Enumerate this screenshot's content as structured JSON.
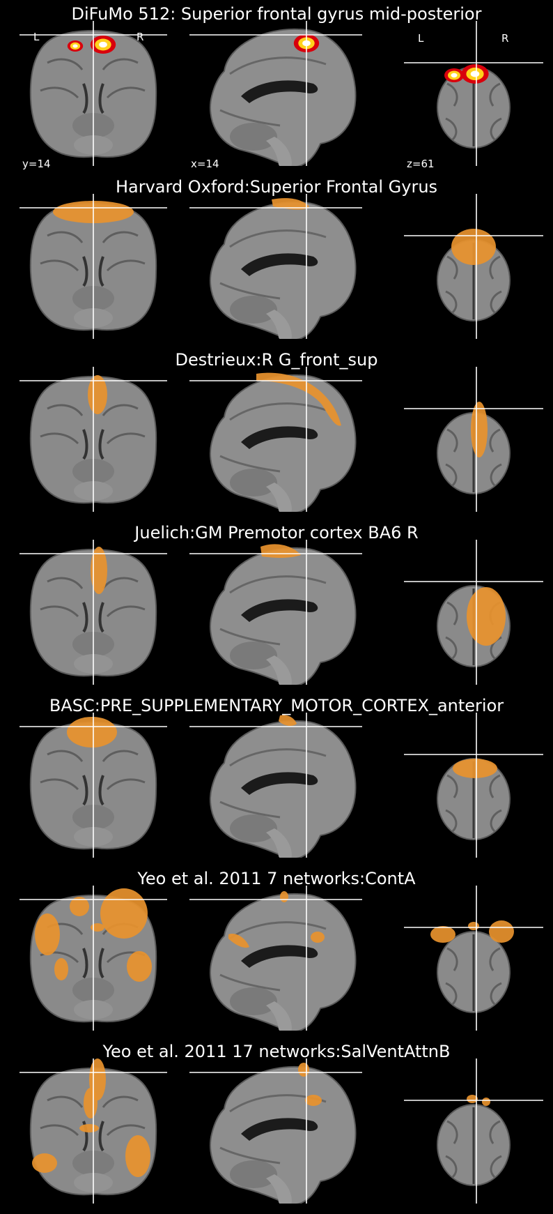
{
  "panels": [
    {
      "title": "DiFuMo 512: Superior frontal gyrus mid-posterior",
      "style": "hot",
      "coronal_labels": {
        "left": "L",
        "right": "R"
      },
      "axial_labels": {
        "left": "L",
        "right": "R"
      },
      "coords": {
        "coronal": "y=14",
        "sagittal": "x=14",
        "axial": "z=61"
      }
    },
    {
      "title": "Harvard Oxford:Superior Frontal Gyrus",
      "style": "orange"
    },
    {
      "title": "Destrieux:R G_front_sup",
      "style": "orange"
    },
    {
      "title": "Juelich:GM Premotor cortex BA6 R",
      "style": "orange"
    },
    {
      "title": "BASC:PRE_SUPPLEMENTARY_MOTOR_CORTEX_anterior",
      "style": "orange"
    },
    {
      "title": "Yeo et al. 2011 7 networks:ContA",
      "style": "orange"
    },
    {
      "title": "Yeo et al. 2011 17 networks:SalVentAttnB",
      "style": "orange"
    }
  ],
  "colors": {
    "background": "#000000",
    "overlay": "#e8922e",
    "crosshair": "#ffffff",
    "hot_core": "#ffffff",
    "hot_mid": "#ffd21c",
    "hot_outer": "#d8000c"
  }
}
